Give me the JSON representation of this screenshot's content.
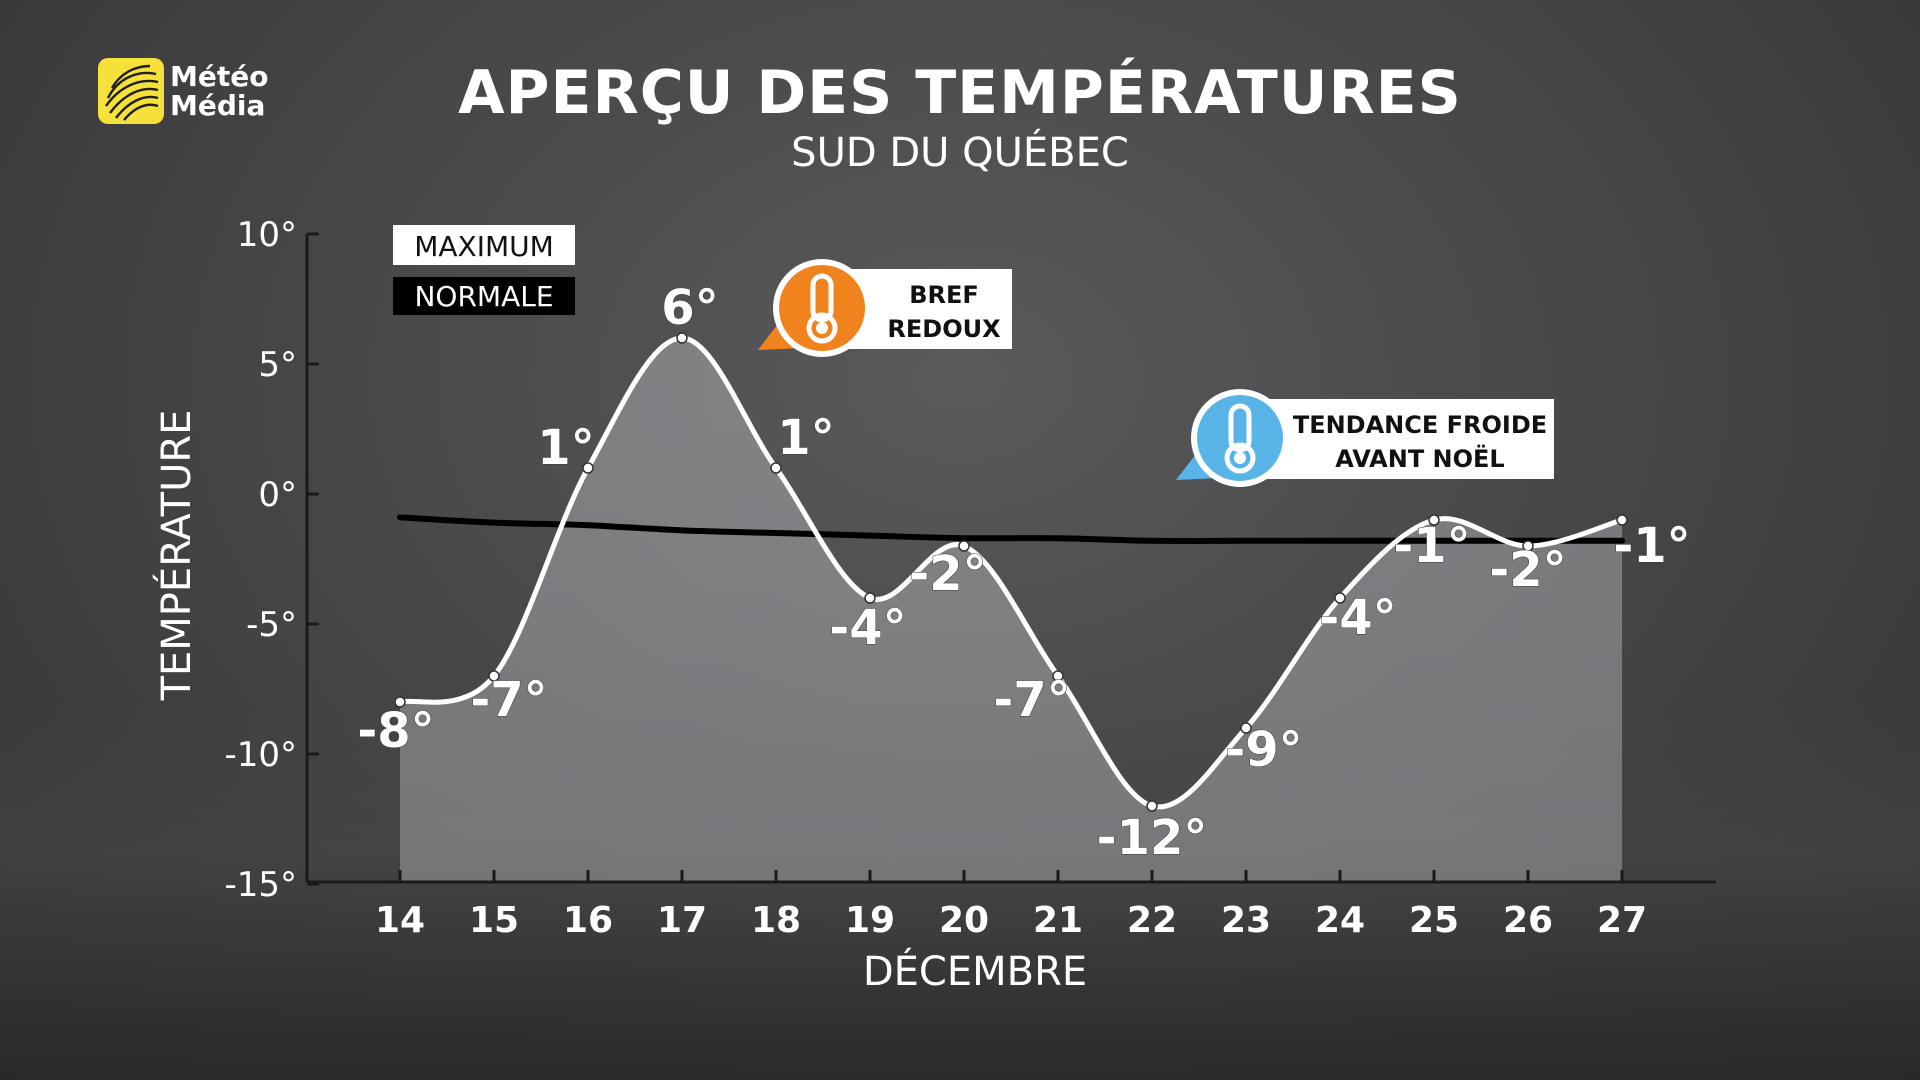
{
  "header": {
    "brand": "Météo Média",
    "brand_line1": "Météo",
    "brand_line2": "Média",
    "title": "APERÇU DES TEMPÉRATURES",
    "subtitle": "SUD DU QUÉBEC"
  },
  "chart_data": {
    "type": "area",
    "title": "APERÇU DES TEMPÉRATURES",
    "subtitle": "SUD DU QUÉBEC",
    "xlabel": "DÉCEMBRE",
    "ylabel": "TEMPÉRATURE",
    "x": [
      14,
      15,
      16,
      17,
      18,
      19,
      20,
      21,
      22,
      23,
      24,
      25,
      26,
      27
    ],
    "ylim": [
      -15,
      10
    ],
    "yticks": [
      10,
      5,
      0,
      -5,
      -10,
      -15
    ],
    "ytick_labels": [
      "10°",
      "5°",
      "0°",
      "-5°",
      "-10°",
      "-15°"
    ],
    "series": [
      {
        "name": "MAXIMUM",
        "color": "#ffffff",
        "values": [
          -8,
          -7,
          1,
          6,
          1,
          -4,
          -2,
          -7,
          -12,
          -9,
          -4,
          -1,
          -2,
          -1
        ],
        "labels": [
          "-8°",
          "-7°",
          "1°",
          "6°",
          "1°",
          "-4°",
          "-2°",
          "-7°",
          "-12°",
          "-9°",
          "-4°",
          "-1°",
          "-2°",
          "-1°"
        ]
      },
      {
        "name": "NORMALE",
        "color": "#000000",
        "values": [
          -0.9,
          -1.1,
          -1.2,
          -1.4,
          -1.5,
          -1.6,
          -1.7,
          -1.7,
          -1.8,
          -1.8,
          -1.8,
          -1.8,
          -1.8,
          -1.8
        ]
      }
    ],
    "legend_position": "top-left",
    "grid": false,
    "annotations": [
      {
        "line1": "BREF",
        "line2": "REDOUX",
        "icon": "thermometer-hot-icon",
        "color": "#f0831e"
      },
      {
        "line1": "TENDANCE FROIDE",
        "line2": "AVANT NOËL",
        "icon": "thermometer-cold-icon",
        "color": "#58b4e6"
      }
    ]
  }
}
